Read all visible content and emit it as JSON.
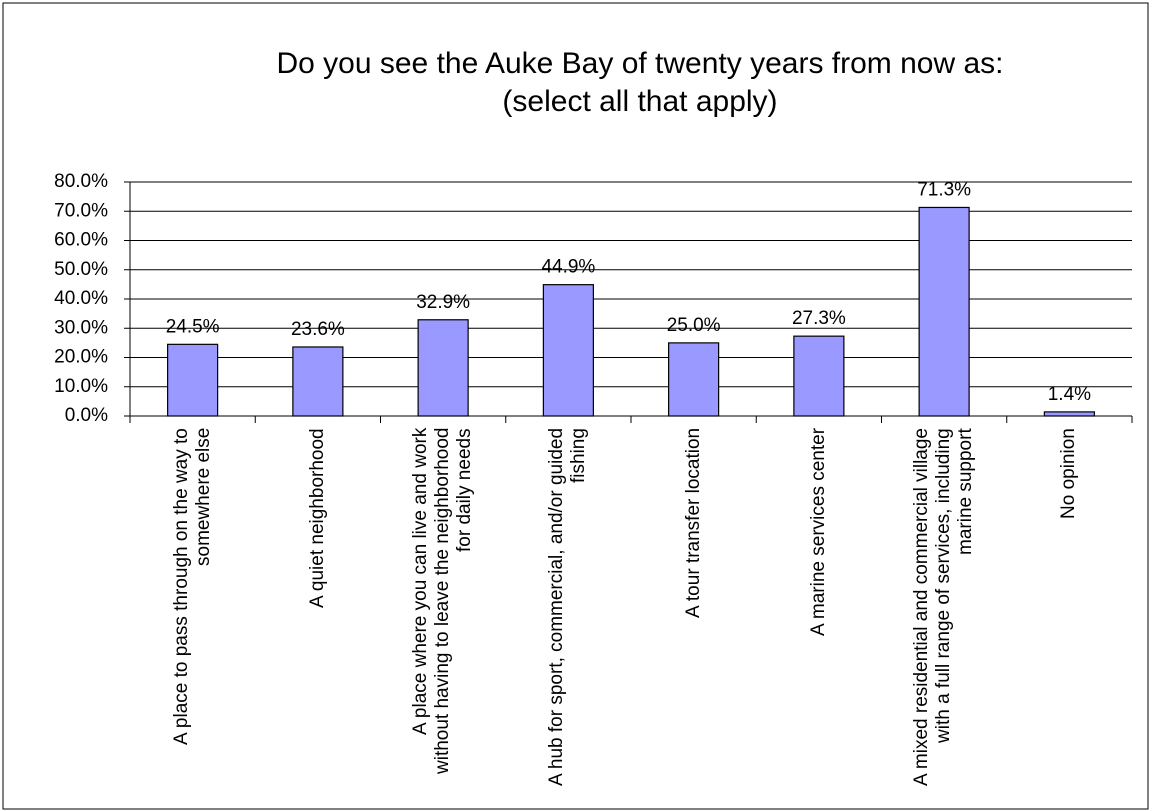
{
  "chart_data": {
    "type": "bar",
    "title": "Do you see the Auke Bay of twenty years from now as:",
    "subtitle": "(select all that apply)",
    "categories": [
      "A place to pass through on the way to somewhere else",
      "A quiet neighborhood",
      "A place where you can live and work without having to leave the neighborhood for daily needs",
      "A hub for sport, commercial, and/or guided fishing",
      "A tour transfer location",
      "A marine services center",
      "A mixed residential and commercial village with a full range of services, including marine support",
      "No opinion"
    ],
    "values": [
      24.5,
      23.6,
      32.9,
      44.9,
      25.0,
      27.3,
      71.3,
      1.4
    ],
    "value_labels": [
      "24.5%",
      "23.6%",
      "32.9%",
      "44.9%",
      "25.0%",
      "27.3%",
      "71.3%",
      "1.4%"
    ],
    "color": "#9999ff",
    "ylim": [
      0,
      80
    ],
    "yticks": [
      {
        "value": 0,
        "label": "0.0%"
      },
      {
        "value": 10,
        "label": "10.0%"
      },
      {
        "value": 20,
        "label": "20.0%"
      },
      {
        "value": 30,
        "label": "30.0%"
      },
      {
        "value": 40,
        "label": "40.0%"
      },
      {
        "value": 50,
        "label": "50.0%"
      },
      {
        "value": 60,
        "label": "60.0%"
      },
      {
        "value": 70,
        "label": "70.0%"
      },
      {
        "value": 80,
        "label": "80.0%"
      }
    ],
    "grid": true
  }
}
